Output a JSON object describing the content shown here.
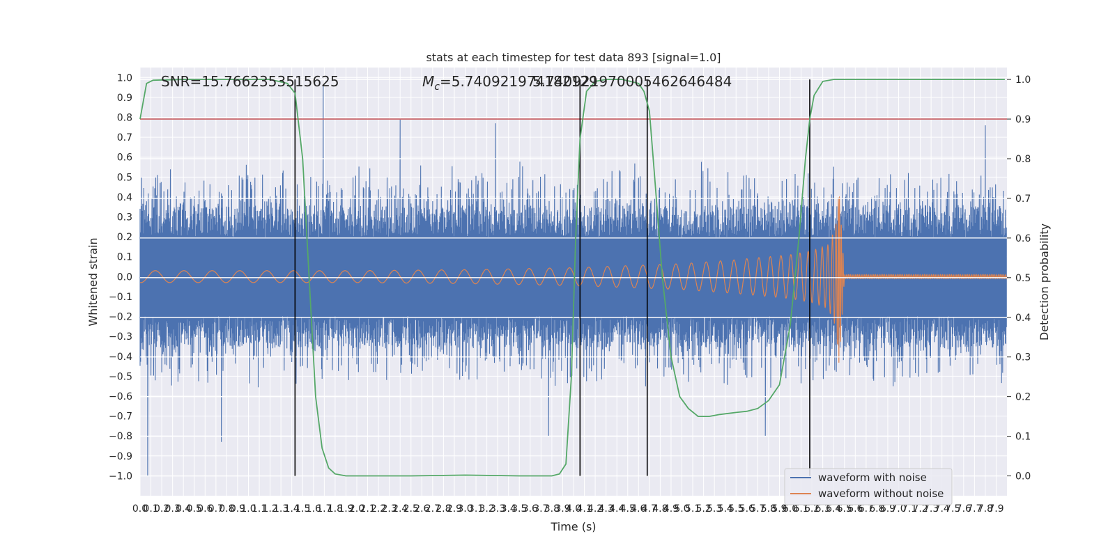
{
  "chart_data": {
    "type": "line",
    "title": "stats at each timestep for test data 893 [signal=1.0]",
    "xlabel": "Time (s)",
    "ylabel": "Whitened strain",
    "y2label": "Detection probability",
    "xlim": [
      0,
      8
    ],
    "ylim": [
      -1.1,
      1.05
    ],
    "y2lim": [
      -0.05,
      1.03
    ],
    "x_ticks": [
      0.0,
      0.1,
      0.2,
      0.3,
      0.4,
      0.5,
      0.6,
      0.7,
      0.8,
      0.9,
      1.0,
      1.1,
      1.2,
      1.3,
      1.4,
      1.5,
      1.6,
      1.7,
      1.8,
      1.9,
      2.0,
      2.1,
      2.2,
      2.3,
      2.4,
      2.5,
      2.6,
      2.7,
      2.8,
      2.9,
      3.0,
      3.1,
      3.2,
      3.3,
      3.4,
      3.5,
      3.6,
      3.7,
      3.8,
      3.9,
      4.0,
      4.1,
      4.2,
      4.3,
      4.4,
      4.5,
      4.6,
      4.7,
      4.8,
      4.9,
      5.0,
      5.1,
      5.2,
      5.3,
      5.4,
      5.5,
      5.6,
      5.7,
      5.8,
      5.9,
      6.0,
      6.1,
      6.2,
      6.3,
      6.4,
      6.5,
      6.6,
      6.7,
      6.8,
      6.9,
      7.0,
      7.1,
      7.2,
      7.3,
      7.4,
      7.5,
      7.6,
      7.7,
      7.8,
      7.9
    ],
    "y_ticks": [
      -1.0,
      -0.9,
      -0.8,
      -0.7,
      -0.6,
      -0.5,
      -0.4,
      -0.3,
      -0.2,
      -0.1,
      0.0,
      0.1,
      0.2,
      0.3,
      0.4,
      0.5,
      0.6,
      0.7,
      0.8,
      0.9,
      1.0
    ],
    "y2_ticks": [
      0.0,
      0.1,
      0.2,
      0.3,
      0.4,
      0.5,
      0.6,
      0.7,
      0.8,
      0.9,
      1.0
    ],
    "annotations": {
      "snr": "SNR=15.7662353515625",
      "mc_symbol": "M",
      "mc_sub": "c",
      "mc_value": "=5.740921974182129",
      "mc_overlap": "5.740921970005462646484"
    },
    "threshold": {
      "y2": 0.9,
      "color": "#c44e52"
    },
    "vertical_lines": [
      1.43,
      4.06,
      4.68,
      6.18
    ],
    "legend": {
      "position": "lower right",
      "entries": [
        {
          "label": "waveform with noise",
          "color": "#4c72b0"
        },
        {
          "label": "waveform without noise",
          "color": "#dd8452"
        }
      ]
    },
    "series": [
      {
        "name": "waveform with noise",
        "color": "#4c72b0",
        "axis": "left",
        "kind": "noise",
        "envelope": 0.36,
        "notable_peaks": [
          {
            "x": 0.07,
            "y": -1.0
          },
          {
            "x": 0.75,
            "y": -0.83
          },
          {
            "x": 1.69,
            "y": 0.96
          },
          {
            "x": 2.4,
            "y": 0.79
          },
          {
            "x": 3.28,
            "y": 0.77
          },
          {
            "x": 3.77,
            "y": -0.8
          },
          {
            "x": 5.77,
            "y": -0.8
          },
          {
            "x": 7.8,
            "y": 0.76
          }
        ]
      },
      {
        "name": "waveform without noise",
        "color": "#dd8452",
        "axis": "left",
        "kind": "chirp",
        "amplitude_x": [
          0.0,
          1.0,
          2.0,
          3.0,
          4.0,
          5.0,
          5.5,
          6.0,
          6.2,
          6.35,
          6.42,
          6.45,
          6.5,
          8.0
        ],
        "amplitude_y": [
          0.03,
          0.03,
          0.03,
          0.035,
          0.045,
          0.065,
          0.085,
          0.11,
          0.13,
          0.16,
          0.25,
          0.44,
          0.01,
          0.01
        ]
      },
      {
        "name": "detection probability",
        "color": "#55a868",
        "axis": "right",
        "x": [
          0.0,
          0.06,
          0.12,
          0.4,
          1.2,
          1.36,
          1.43,
          1.5,
          1.56,
          1.62,
          1.68,
          1.74,
          1.8,
          1.9,
          2.0,
          2.5,
          3.0,
          3.5,
          3.8,
          3.87,
          3.93,
          3.98,
          4.02,
          4.06,
          4.12,
          4.2,
          4.3,
          4.45,
          4.6,
          4.65,
          4.7,
          4.75,
          4.82,
          4.9,
          4.98,
          5.06,
          5.15,
          5.25,
          5.35,
          5.5,
          5.6,
          5.7,
          5.8,
          5.9,
          6.0,
          6.08,
          6.14,
          6.18,
          6.22,
          6.3,
          6.4,
          6.6,
          7.0,
          7.5,
          7.98
        ],
        "y": [
          0.9,
          0.99,
          0.998,
          1.0,
          1.0,
          0.99,
          0.965,
          0.8,
          0.5,
          0.2,
          0.07,
          0.02,
          0.005,
          0.0,
          0.0,
          0.0,
          0.002,
          0.0,
          0.0,
          0.005,
          0.03,
          0.25,
          0.6,
          0.85,
          0.97,
          0.995,
          1.0,
          1.0,
          0.99,
          0.97,
          0.92,
          0.75,
          0.5,
          0.3,
          0.2,
          0.17,
          0.15,
          0.15,
          0.155,
          0.16,
          0.163,
          0.17,
          0.19,
          0.23,
          0.38,
          0.6,
          0.8,
          0.9,
          0.96,
          0.995,
          1.0,
          1.0,
          1.0,
          1.0,
          1.0
        ]
      }
    ]
  }
}
